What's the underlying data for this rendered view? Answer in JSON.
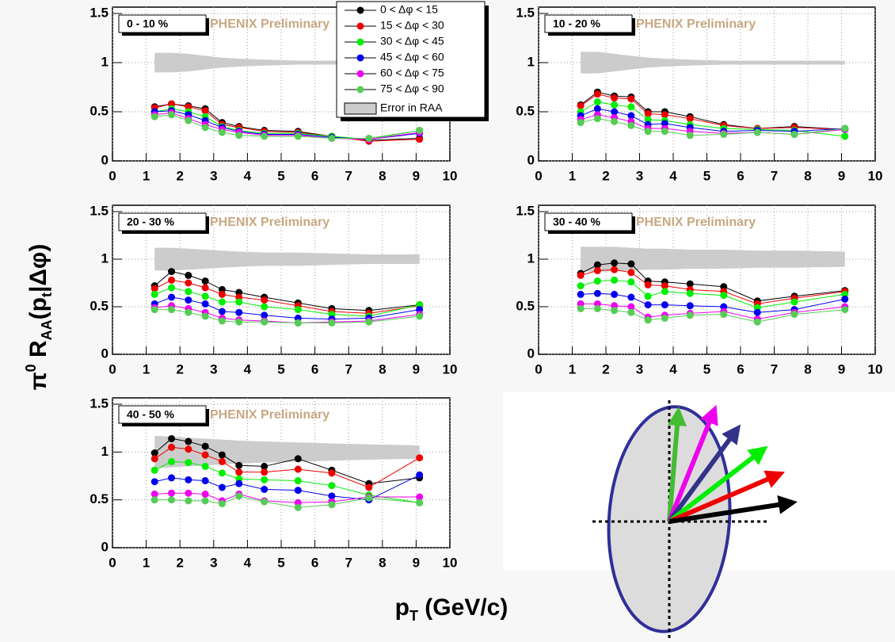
{
  "y_label": [
    "π",
    "0",
    " R",
    "AA",
    "(p",
    "t",
    "|Δφ)"
  ],
  "x_label": [
    "p",
    "T",
    " (GeV/c)"
  ],
  "chart_data": [
    {
      "type": "line",
      "title": "0 - 10 %",
      "watermark": "PHENIX Preliminary",
      "legend": "top-right",
      "x": [
        1.25,
        1.75,
        2.25,
        2.75,
        3.25,
        3.75,
        4.5,
        5.5,
        6.5,
        7.6,
        9.1
      ],
      "xlim": [
        0,
        10
      ],
      "xticks": [
        0,
        1,
        2,
        3,
        4,
        5,
        6,
        7,
        8,
        9,
        10
      ],
      "ylim": [
        0,
        1.5
      ],
      "yticks": [
        0,
        0.5,
        1,
        1.5
      ],
      "grid": true,
      "band": {
        "name": "Error in RAA",
        "color": "#cccccc",
        "lower": [
          0.9,
          0.9,
          0.91,
          0.93,
          0.95,
          0.96,
          0.97,
          0.98,
          0.98,
          0.98,
          0.98
        ],
        "upper": [
          1.1,
          1.1,
          1.09,
          1.07,
          1.05,
          1.04,
          1.03,
          1.02,
          1.02,
          1.02,
          1.02
        ]
      },
      "series": [
        {
          "name": "0 < Δφ < 15",
          "color": "#000000",
          "values": [
            0.55,
            0.58,
            0.56,
            0.53,
            0.39,
            0.35,
            0.31,
            0.3,
            0.25,
            0.21,
            0.23
          ]
        },
        {
          "name": "15 < Δφ < 30",
          "color": "#ee0000",
          "values": [
            0.54,
            0.58,
            0.55,
            0.51,
            0.37,
            0.34,
            0.3,
            0.29,
            0.25,
            0.2,
            0.22
          ]
        },
        {
          "name": "30 < Δφ < 45",
          "color": "#00ee00",
          "values": [
            0.5,
            0.53,
            0.5,
            0.45,
            0.35,
            0.31,
            0.28,
            0.28,
            0.25,
            0.22,
            0.31
          ]
        },
        {
          "name": "45 < Δφ < 60",
          "color": "#0000ee",
          "values": [
            0.5,
            0.51,
            0.47,
            0.41,
            0.34,
            0.3,
            0.27,
            0.27,
            0.24,
            0.22,
            0.28
          ]
        },
        {
          "name": "60 < Δφ < 75",
          "color": "#ee00ee",
          "values": [
            0.47,
            0.49,
            0.43,
            0.37,
            0.32,
            0.29,
            0.26,
            0.26,
            0.23,
            0.22,
            0.29
          ]
        },
        {
          "name": "75 < Δφ < 90",
          "color": "#55cc55",
          "values": [
            0.45,
            0.47,
            0.41,
            0.34,
            0.29,
            0.26,
            0.25,
            0.25,
            0.23,
            0.23,
            0.31
          ]
        }
      ]
    },
    {
      "type": "line",
      "title": "10 - 20 %",
      "watermark": "PHENIX Preliminary",
      "x": [
        1.25,
        1.75,
        2.25,
        2.75,
        3.25,
        3.75,
        4.5,
        5.5,
        6.5,
        7.6,
        9.1
      ],
      "xlim": [
        0,
        10
      ],
      "xticks": [
        0,
        1,
        2,
        3,
        4,
        5,
        6,
        7,
        8,
        9,
        10
      ],
      "ylim": [
        0,
        1.5
      ],
      "yticks": [
        0,
        0.5,
        1,
        1.5
      ],
      "grid": true,
      "band": {
        "color": "#cccccc",
        "lower": [
          0.89,
          0.89,
          0.91,
          0.93,
          0.95,
          0.96,
          0.97,
          0.98,
          0.98,
          0.98,
          0.98
        ],
        "upper": [
          1.11,
          1.11,
          1.09,
          1.07,
          1.05,
          1.04,
          1.03,
          1.02,
          1.02,
          1.02,
          1.02
        ]
      },
      "series": [
        {
          "color": "#000000",
          "values": [
            0.57,
            0.7,
            0.66,
            0.65,
            0.5,
            0.5,
            0.45,
            0.37,
            0.33,
            0.35,
            0.32
          ]
        },
        {
          "color": "#ee0000",
          "values": [
            0.56,
            0.68,
            0.64,
            0.63,
            0.48,
            0.47,
            0.43,
            0.36,
            0.33,
            0.34,
            0.32
          ]
        },
        {
          "color": "#00ee00",
          "values": [
            0.5,
            0.6,
            0.57,
            0.55,
            0.42,
            0.41,
            0.37,
            0.33,
            0.32,
            0.31,
            0.25
          ]
        },
        {
          "color": "#0000ee",
          "values": [
            0.46,
            0.53,
            0.5,
            0.46,
            0.37,
            0.38,
            0.34,
            0.3,
            0.31,
            0.3,
            0.33
          ]
        },
        {
          "color": "#ee00ee",
          "values": [
            0.42,
            0.47,
            0.44,
            0.4,
            0.33,
            0.33,
            0.3,
            0.28,
            0.29,
            0.27,
            0.32
          ]
        },
        {
          "color": "#55cc55",
          "values": [
            0.39,
            0.43,
            0.4,
            0.36,
            0.3,
            0.3,
            0.26,
            0.27,
            0.29,
            0.27,
            0.33
          ]
        }
      ]
    },
    {
      "type": "line",
      "title": "20 - 30 %",
      "watermark": "PHENIX Preliminary",
      "x": [
        1.25,
        1.75,
        2.25,
        2.75,
        3.25,
        3.75,
        4.5,
        5.5,
        6.5,
        7.6,
        9.1
      ],
      "xlim": [
        0,
        10
      ],
      "xticks": [
        0,
        1,
        2,
        3,
        4,
        5,
        6,
        7,
        8,
        9,
        10
      ],
      "ylim": [
        0,
        1.5
      ],
      "yticks": [
        0,
        0.5,
        1,
        1.5
      ],
      "grid": true,
      "band": {
        "color": "#cccccc",
        "lower": [
          0.88,
          0.88,
          0.89,
          0.9,
          0.91,
          0.92,
          0.93,
          0.93,
          0.94,
          0.95,
          0.95
        ],
        "upper": [
          1.12,
          1.12,
          1.11,
          1.1,
          1.09,
          1.08,
          1.07,
          1.07,
          1.06,
          1.05,
          1.05
        ]
      },
      "series": [
        {
          "color": "#000000",
          "values": [
            0.72,
            0.87,
            0.83,
            0.77,
            0.68,
            0.65,
            0.6,
            0.54,
            0.48,
            0.46,
            0.52
          ]
        },
        {
          "color": "#ee0000",
          "values": [
            0.69,
            0.78,
            0.75,
            0.7,
            0.63,
            0.6,
            0.57,
            0.51,
            0.45,
            0.43,
            0.51
          ]
        },
        {
          "color": "#00ee00",
          "values": [
            0.63,
            0.7,
            0.66,
            0.61,
            0.55,
            0.55,
            0.5,
            0.47,
            0.42,
            0.4,
            0.52
          ]
        },
        {
          "color": "#0000ee",
          "values": [
            0.53,
            0.6,
            0.57,
            0.53,
            0.45,
            0.44,
            0.41,
            0.38,
            0.37,
            0.38,
            0.47
          ]
        },
        {
          "color": "#ee00ee",
          "values": [
            0.49,
            0.51,
            0.48,
            0.44,
            0.38,
            0.36,
            0.35,
            0.33,
            0.34,
            0.35,
            0.42
          ]
        },
        {
          "color": "#55cc55",
          "values": [
            0.47,
            0.47,
            0.44,
            0.4,
            0.35,
            0.34,
            0.34,
            0.33,
            0.33,
            0.34,
            0.4
          ]
        }
      ]
    },
    {
      "type": "line",
      "title": "30 - 40 %",
      "watermark": "PHENIX Preliminary",
      "x": [
        1.25,
        1.75,
        2.25,
        2.75,
        3.25,
        3.75,
        4.5,
        5.5,
        6.5,
        7.6,
        9.1
      ],
      "xlim": [
        0,
        10
      ],
      "xticks": [
        0,
        1,
        2,
        3,
        4,
        5,
        6,
        7,
        8,
        9,
        10
      ],
      "ylim": [
        0,
        1.5
      ],
      "yticks": [
        0,
        0.5,
        1,
        1.5
      ],
      "grid": true,
      "band": {
        "color": "#cccccc",
        "lower": [
          0.87,
          0.87,
          0.87,
          0.88,
          0.89,
          0.89,
          0.9,
          0.9,
          0.91,
          0.91,
          0.92
        ],
        "upper": [
          1.13,
          1.13,
          1.13,
          1.12,
          1.11,
          1.11,
          1.1,
          1.1,
          1.09,
          1.09,
          1.08
        ]
      },
      "series": [
        {
          "color": "#000000",
          "values": [
            0.85,
            0.94,
            0.96,
            0.95,
            0.77,
            0.76,
            0.74,
            0.71,
            0.56,
            0.61,
            0.67
          ]
        },
        {
          "color": "#ee0000",
          "values": [
            0.83,
            0.88,
            0.89,
            0.86,
            0.73,
            0.72,
            0.68,
            0.66,
            0.53,
            0.59,
            0.66
          ]
        },
        {
          "color": "#00ee00",
          "values": [
            0.72,
            0.77,
            0.78,
            0.76,
            0.61,
            0.66,
            0.64,
            0.62,
            0.49,
            0.55,
            0.63
          ]
        },
        {
          "color": "#0000ee",
          "values": [
            0.63,
            0.64,
            0.63,
            0.6,
            0.52,
            0.52,
            0.51,
            0.5,
            0.44,
            0.47,
            0.58
          ]
        },
        {
          "color": "#ee00ee",
          "values": [
            0.53,
            0.53,
            0.51,
            0.5,
            0.39,
            0.41,
            0.43,
            0.45,
            0.37,
            0.44,
            0.5
          ]
        },
        {
          "color": "#55cc55",
          "values": [
            0.48,
            0.48,
            0.46,
            0.44,
            0.36,
            0.38,
            0.41,
            0.42,
            0.34,
            0.42,
            0.47
          ]
        }
      ]
    },
    {
      "type": "line",
      "title": "40 - 50 %",
      "watermark": "PHENIX Preliminary",
      "x": [
        1.25,
        1.75,
        2.25,
        2.75,
        3.25,
        3.75,
        4.5,
        5.5,
        6.5,
        7.6,
        9.1
      ],
      "xlim": [
        0,
        10
      ],
      "xticks": [
        0,
        1,
        2,
        3,
        4,
        5,
        6,
        7,
        8,
        9,
        10
      ],
      "ylim": [
        0,
        1.5
      ],
      "yticks": [
        0,
        0.5,
        1,
        1.5
      ],
      "grid": true,
      "band": {
        "color": "#cccccc",
        "lower": [
          0.83,
          0.84,
          0.85,
          0.86,
          0.87,
          0.88,
          0.89,
          0.9,
          0.91,
          0.92,
          0.93
        ],
        "upper": [
          1.17,
          1.16,
          1.15,
          1.14,
          1.13,
          1.12,
          1.11,
          1.1,
          1.09,
          1.08,
          1.07
        ]
      },
      "series": [
        {
          "color": "#000000",
          "values": [
            0.99,
            1.14,
            1.11,
            1.06,
            0.97,
            0.86,
            0.85,
            0.93,
            0.81,
            0.67,
            0.73
          ]
        },
        {
          "color": "#ee0000",
          "values": [
            0.93,
            1.05,
            1.03,
            0.97,
            0.9,
            0.79,
            0.79,
            0.82,
            0.78,
            0.63,
            0.94
          ]
        },
        {
          "color": "#00ee00",
          "values": [
            0.81,
            0.9,
            0.89,
            0.85,
            0.78,
            0.72,
            0.71,
            0.7,
            0.65,
            0.55,
            0.47
          ]
        },
        {
          "color": "#0000ee",
          "values": [
            0.69,
            0.73,
            0.71,
            0.7,
            0.63,
            0.67,
            0.61,
            0.6,
            0.54,
            0.5,
            0.76
          ]
        },
        {
          "color": "#ee00ee",
          "values": [
            0.56,
            0.57,
            0.57,
            0.56,
            0.49,
            0.56,
            0.49,
            0.47,
            0.48,
            0.53,
            0.53
          ]
        },
        {
          "color": "#55cc55",
          "values": [
            0.5,
            0.5,
            0.49,
            0.49,
            0.46,
            0.54,
            0.48,
            0.42,
            0.45,
            0.52,
            0.47
          ]
        }
      ]
    }
  ]
}
